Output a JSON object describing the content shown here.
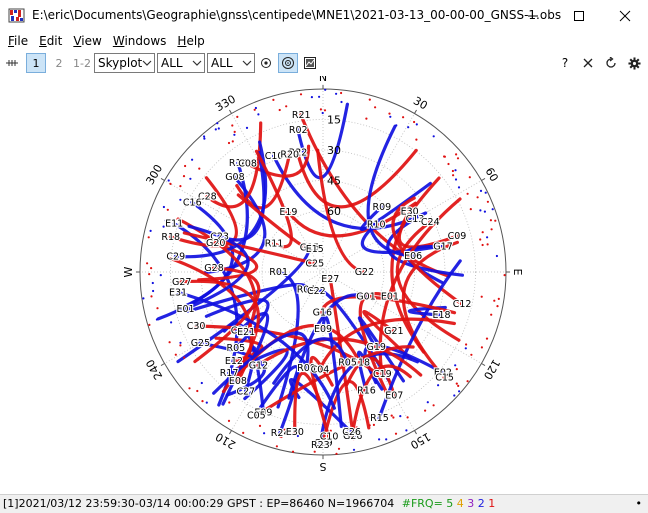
{
  "window": {
    "title": "E:\\eric\\Documents\\Geographie\\gnss\\centipede\\MNE1\\2021-03-13_00-00-00_GNSS-1.obs"
  },
  "menu": [
    {
      "label": "File",
      "u": "F",
      "rest": "ile"
    },
    {
      "label": "Edit",
      "u": "E",
      "rest": "dit"
    },
    {
      "label": "View",
      "u": "V",
      "rest": "iew"
    },
    {
      "label": "Windows",
      "u": "W",
      "rest": "indows"
    },
    {
      "label": "Help",
      "u": "H",
      "rest": "elp"
    }
  ],
  "toolbar": {
    "freq1": "1",
    "freq2": "2",
    "freq12": "1-2",
    "plot_type": "Skyplot",
    "sys_select": "ALL",
    "sat_select": "ALL",
    "help_label": "?"
  },
  "skyplot": {
    "compass": {
      "n": "N",
      "e": "E",
      "s": "S",
      "w": "W"
    },
    "azimuth_labels": [
      {
        "az": 30,
        "text": "30"
      },
      {
        "az": 60,
        "text": "60"
      },
      {
        "az": 120,
        "text": "120"
      },
      {
        "az": 150,
        "text": "150"
      },
      {
        "az": 210,
        "text": "210"
      },
      {
        "az": 240,
        "text": "240"
      },
      {
        "az": 300,
        "text": "300"
      },
      {
        "az": 330,
        "text": "330"
      }
    ],
    "elevation_labels": [
      "15",
      "30",
      "45",
      "60"
    ],
    "colors": {
      "gps": "#e01010",
      "other": "#1010e0"
    },
    "satellites": [
      {
        "id": "R21",
        "az": 352,
        "el": 12
      },
      {
        "id": "R02",
        "az": 350,
        "el": 19
      },
      {
        "id": "R22",
        "az": 348,
        "el": 30
      },
      {
        "id": "C10",
        "az": 337,
        "el": 28
      },
      {
        "id": "R20",
        "az": 344,
        "el": 30
      },
      {
        "id": "R14",
        "az": 322,
        "el": 22
      },
      {
        "id": "C08",
        "az": 325,
        "el": 25
      },
      {
        "id": "G08",
        "az": 317,
        "el": 26
      },
      {
        "id": "C28",
        "az": 303,
        "el": 22
      },
      {
        "id": "C16",
        "az": 298,
        "el": 17
      },
      {
        "id": "E19",
        "az": 330,
        "el": 56
      },
      {
        "id": "E11",
        "az": 288,
        "el": 13
      },
      {
        "id": "R18",
        "az": 283,
        "el": 13
      },
      {
        "id": "C23",
        "az": 289,
        "el": 36
      },
      {
        "id": "G20",
        "az": 285,
        "el": 35
      },
      {
        "id": "C29",
        "az": 276,
        "el": 17
      },
      {
        "id": "R11",
        "az": 300,
        "el": 62
      },
      {
        "id": "G15",
        "az": 330,
        "el": 76
      },
      {
        "id": "E15",
        "az": 340,
        "el": 78
      },
      {
        "id": "R01",
        "az": 270,
        "el": 68
      },
      {
        "id": "C25",
        "az": 315,
        "el": 84
      },
      {
        "id": "R04",
        "az": 225,
        "el": 78
      },
      {
        "id": "E27",
        "az": 135,
        "el": 85
      },
      {
        "id": "C22",
        "az": 200,
        "el": 80
      },
      {
        "id": "G22",
        "az": 90,
        "el": 70
      },
      {
        "id": "R10",
        "az": 48,
        "el": 55
      },
      {
        "id": "E01",
        "az": 110,
        "el": 55
      },
      {
        "id": "R09",
        "az": 42,
        "el": 47
      },
      {
        "id": "E30",
        "az": 55,
        "el": 38
      },
      {
        "id": "C13",
        "az": 60,
        "el": 38
      },
      {
        "id": "C24",
        "az": 65,
        "el": 32
      },
      {
        "id": "E06",
        "az": 80,
        "el": 45
      },
      {
        "id": "C09",
        "az": 75,
        "el": 22
      },
      {
        "id": "G17",
        "az": 78,
        "el": 30
      },
      {
        "id": "C12",
        "az": 103,
        "el": 20
      },
      {
        "id": "E18",
        "az": 110,
        "el": 28
      },
      {
        "id": "G21",
        "az": 130,
        "el": 45
      },
      {
        "id": "G19",
        "az": 145,
        "el": 45
      },
      {
        "id": "C19",
        "az": 150,
        "el": 32
      },
      {
        "id": "R16",
        "az": 160,
        "el": 28
      },
      {
        "id": "E07",
        "az": 150,
        "el": 20
      },
      {
        "id": "E02",
        "az": 130,
        "el": 13
      },
      {
        "id": "G15b",
        "label": "C15",
        "az": 131,
        "el": 11
      },
      {
        "id": "R15",
        "az": 159,
        "el": 13
      },
      {
        "id": "G26",
        "az": 170,
        "el": 8
      },
      {
        "id": "C26",
        "az": 170,
        "el": 10
      },
      {
        "id": "C29b",
        "label": "C39",
        "az": 180,
        "el": 6
      },
      {
        "id": "R23",
        "az": 181,
        "el": 5
      },
      {
        "id": "C10b",
        "label": "C10",
        "az": 178,
        "el": 9
      },
      {
        "id": "R24",
        "az": 195,
        "el": 8
      },
      {
        "id": "E30b",
        "label": "E30",
        "az": 190,
        "el": 10
      },
      {
        "id": "E09",
        "az": 203,
        "el": 15
      },
      {
        "id": "C05",
        "az": 205,
        "el": 12
      },
      {
        "id": "C27",
        "az": 213,
        "el": 20
      },
      {
        "id": "E08",
        "az": 218,
        "el": 22
      },
      {
        "id": "R17",
        "az": 223,
        "el": 22
      },
      {
        "id": "E12",
        "az": 225,
        "el": 28
      },
      {
        "id": "R05",
        "az": 229,
        "el": 33
      },
      {
        "id": "G12",
        "az": 215,
        "el": 34
      },
      {
        "id": "G25",
        "az": 240,
        "el": 20
      },
      {
        "id": "C30",
        "az": 247,
        "el": 22
      },
      {
        "id": "C21",
        "az": 235,
        "el": 40
      },
      {
        "id": "E21",
        "az": 232,
        "el": 42
      },
      {
        "id": "E31",
        "az": 262,
        "el": 18
      },
      {
        "id": "G27",
        "az": 266,
        "el": 20
      },
      {
        "id": "E01b",
        "label": "E01",
        "az": 255,
        "el": 20
      },
      {
        "id": "G28",
        "az": 272,
        "el": 36
      },
      {
        "id": "E09b",
        "label": "E09",
        "az": 180,
        "el": 62
      },
      {
        "id": "G16",
        "az": 182,
        "el": 70
      },
      {
        "id": "G01",
        "az": 120,
        "el": 66
      },
      {
        "id": "G18",
        "az": 158,
        "el": 42
      },
      {
        "id": "R08",
        "az": 190,
        "el": 42
      },
      {
        "id": "C04",
        "az": 182,
        "el": 42
      },
      {
        "id": "E01c",
        "label": "R05",
        "az": 165,
        "el": 44
      }
    ]
  },
  "status": {
    "text": "[1]2021/03/12 23:59:30-03/14 00:00:29 GPST : EP=86460 N=1966704",
    "frq_label": "#FRQ=",
    "frq": [
      {
        "text": "5",
        "color": "#1a9b1a"
      },
      {
        "text": "4",
        "color": "#e0a000"
      },
      {
        "text": "3",
        "color": "#9020c0"
      },
      {
        "text": "2",
        "color": "#2020e0"
      },
      {
        "text": "1",
        "color": "#e01010"
      }
    ]
  }
}
